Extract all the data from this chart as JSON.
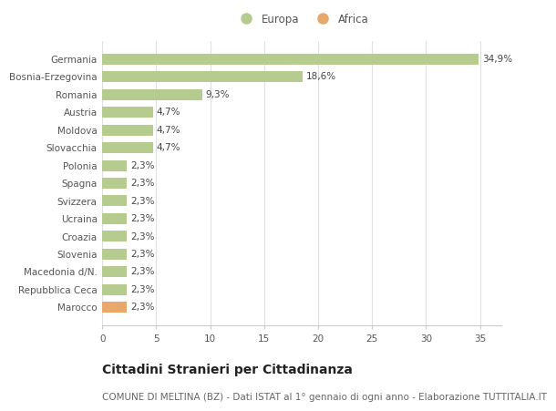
{
  "categories": [
    "Germania",
    "Bosnia-Erzegovina",
    "Romania",
    "Austria",
    "Moldova",
    "Slovacchia",
    "Polonia",
    "Spagna",
    "Svizzera",
    "Ucraina",
    "Croazia",
    "Slovenia",
    "Macedonia d/N.",
    "Repubblica Ceca",
    "Marocco"
  ],
  "values": [
    34.9,
    18.6,
    9.3,
    4.7,
    4.7,
    4.7,
    2.3,
    2.3,
    2.3,
    2.3,
    2.3,
    2.3,
    2.3,
    2.3,
    2.3
  ],
  "labels": [
    "34,9%",
    "18,6%",
    "9,3%",
    "4,7%",
    "4,7%",
    "4,7%",
    "2,3%",
    "2,3%",
    "2,3%",
    "2,3%",
    "2,3%",
    "2,3%",
    "2,3%",
    "2,3%",
    "2,3%"
  ],
  "colors": [
    "#b5cc8e",
    "#b5cc8e",
    "#b5cc8e",
    "#b5cc8e",
    "#b5cc8e",
    "#b5cc8e",
    "#b5cc8e",
    "#b5cc8e",
    "#b5cc8e",
    "#b5cc8e",
    "#b5cc8e",
    "#b5cc8e",
    "#b5cc8e",
    "#b5cc8e",
    "#e8a86b"
  ],
  "europa_color": "#b5cc8e",
  "africa_color": "#e8a86b",
  "background_color": "#ffffff",
  "grid_color": "#e0e0e0",
  "xlim": [
    0,
    37
  ],
  "xticks": [
    0,
    5,
    10,
    15,
    20,
    25,
    30,
    35
  ],
  "title": "Cittadini Stranieri per Cittadinanza",
  "subtitle": "COMUNE DI MELTINA (BZ) - Dati ISTAT al 1° gennaio di ogni anno - Elaborazione TUTTITALIA.IT",
  "title_fontsize": 10,
  "subtitle_fontsize": 7.5,
  "label_fontsize": 7.5,
  "tick_fontsize": 7.5,
  "legend_fontsize": 8.5
}
